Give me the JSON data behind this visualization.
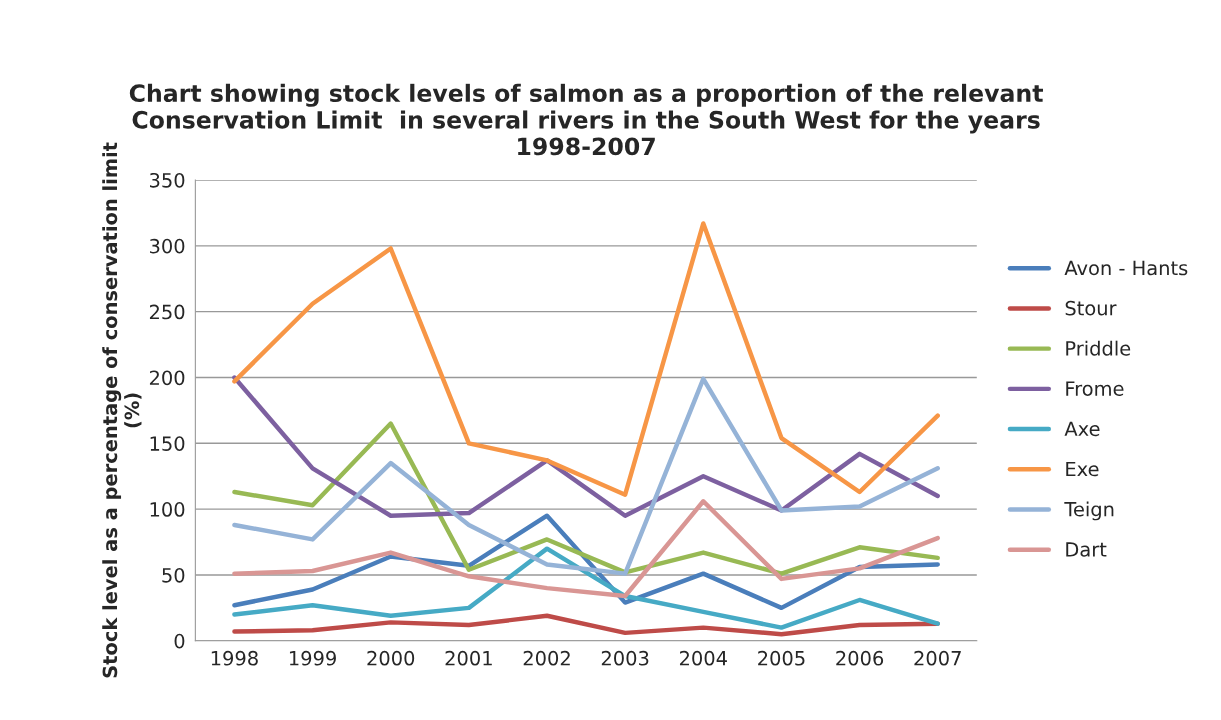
{
  "chart_data": {
    "type": "line",
    "title": "Chart showing stock levels of salmon as a proportion of the relevant\nConservation Limit  in several rivers in the South West for the years\n1998-2007",
    "ylabel": "Stock level as a percentage of conservation limit\n(%)",
    "categories": [
      "1998",
      "1999",
      "2000",
      "2001",
      "2002",
      "2003",
      "2004",
      "2005",
      "2006",
      "2007"
    ],
    "ylim": [
      0,
      350
    ],
    "yticks": [
      0,
      50,
      100,
      150,
      200,
      250,
      300,
      350
    ],
    "grid": "y",
    "legend": "right",
    "marker": "none",
    "series": [
      {
        "name": "Avon - Hants",
        "color": "#4a7ebb",
        "values": [
          27,
          39,
          64,
          57,
          95,
          29,
          51,
          25,
          56,
          58
        ]
      },
      {
        "name": "Stour",
        "color": "#be4b48",
        "values": [
          7,
          8,
          14,
          12,
          19,
          6,
          10,
          5,
          12,
          13
        ]
      },
      {
        "name": "Priddle",
        "color": "#98b954",
        "values": [
          113,
          103,
          165,
          54,
          77,
          52,
          67,
          51,
          71,
          63
        ]
      },
      {
        "name": "Frome",
        "color": "#7d60a0",
        "values": [
          200,
          131,
          95,
          97,
          137,
          95,
          125,
          99,
          142,
          110
        ]
      },
      {
        "name": "Axe",
        "color": "#46aac5",
        "values": [
          20,
          27,
          19,
          25,
          70,
          34,
          22,
          10,
          31,
          13
        ]
      },
      {
        "name": "Exe",
        "color": "#f79646",
        "values": [
          197,
          256,
          298,
          150,
          137,
          111,
          317,
          154,
          113,
          171
        ]
      },
      {
        "name": "Teign",
        "color": "#95b3d7",
        "values": [
          88,
          77,
          135,
          88,
          58,
          51,
          199,
          99,
          102,
          131
        ]
      },
      {
        "name": "Dart",
        "color": "#d99694",
        "values": [
          51,
          53,
          67,
          49,
          40,
          34,
          106,
          47,
          55,
          78
        ]
      }
    ]
  }
}
